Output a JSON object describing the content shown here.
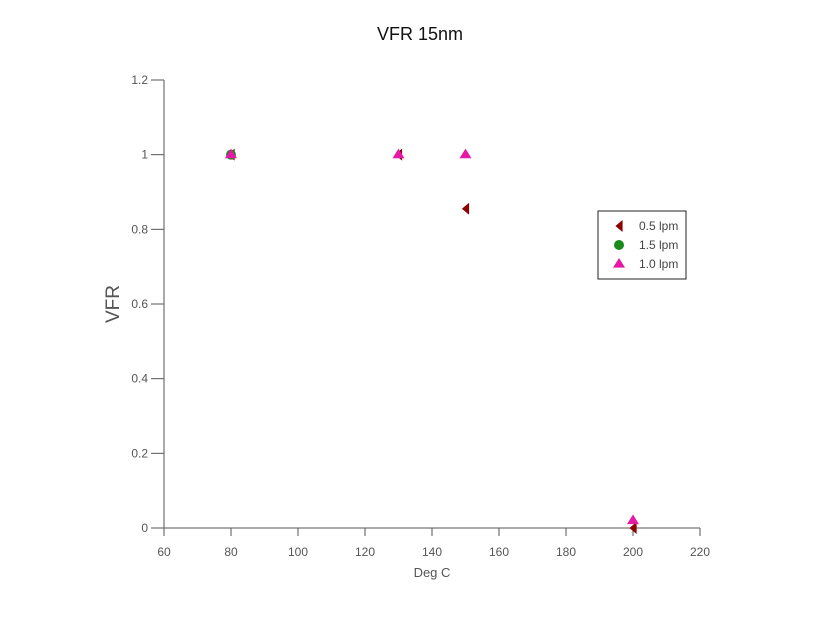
{
  "chart_data": {
    "type": "scatter",
    "title": "VFR  15nm",
    "xlabel": "Deg C",
    "ylabel": "VFR",
    "xlim": [
      60,
      220
    ],
    "ylim": [
      0,
      1.2
    ],
    "xticks": [
      "60",
      "80",
      "100",
      "120",
      "140",
      "160",
      "180",
      "200",
      "220"
    ],
    "yticks": [
      "0",
      "0.2",
      "0.4",
      "0.6",
      "0.8",
      "1",
      "1.2"
    ],
    "grid": false,
    "legend_position": "right",
    "series": [
      {
        "name": "0.5 lpm",
        "marker": "triangle-left",
        "color": "#8b0000",
        "points": [
          {
            "x": 80,
            "y": 1.0
          },
          {
            "x": 130,
            "y": 1.0
          },
          {
            "x": 150,
            "y": 0.855
          },
          {
            "x": 200,
            "y": 0.0
          }
        ]
      },
      {
        "name": "1.5 lpm",
        "marker": "circle",
        "color": "#1a8a1a",
        "points": [
          {
            "x": 80,
            "y": 1.0
          }
        ]
      },
      {
        "name": "1.0 lpm",
        "marker": "triangle-up",
        "color": "#e619a6",
        "points": [
          {
            "x": 80,
            "y": 1.0
          },
          {
            "x": 130,
            "y": 1.0
          },
          {
            "x": 150,
            "y": 1.0
          },
          {
            "x": 200,
            "y": 0.02
          }
        ]
      }
    ]
  }
}
